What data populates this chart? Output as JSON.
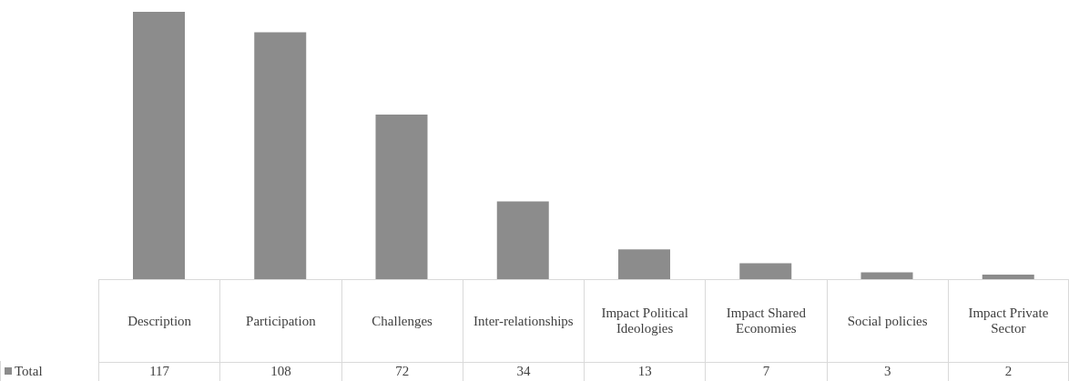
{
  "chart_data": {
    "type": "bar",
    "categories": [
      "Description",
      "Participation",
      "Challenges",
      "Inter-relationships",
      "Impact Political Ideologies",
      "Impact Shared Economies",
      "Social policies",
      "Impact Private Sector"
    ],
    "series": [
      {
        "name": "Total",
        "color": "#8c8c8c",
        "values": [
          117,
          108,
          72,
          34,
          13,
          7,
          3,
          2
        ]
      }
    ],
    "data_labels": true,
    "legend": "bottom left"
  }
}
